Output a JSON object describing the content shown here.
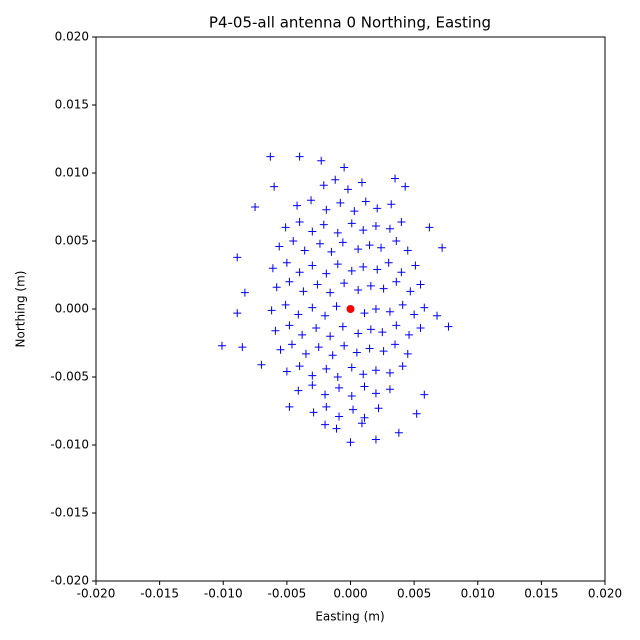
{
  "chart_data": {
    "type": "scatter",
    "title": "P4-05-all antenna 0 Northing, Easting",
    "xlabel": "Easting (m)",
    "ylabel": "Northing (m)",
    "xlim": [
      -0.02,
      0.02
    ],
    "ylim": [
      -0.02,
      0.02
    ],
    "xticks": [
      {
        "value": -0.02,
        "label": "-0.020"
      },
      -0.015,
      {
        "value": -0.01,
        "label": "-0.010"
      },
      -0.005,
      {
        "value": 0,
        "label": "0.000"
      },
      0.005,
      {
        "value": 0.01,
        "label": "0.010"
      },
      0.015,
      {
        "value": 0.02,
        "label": "0.020"
      }
    ],
    "yticks": [
      {
        "value": -0.02,
        "label": "-0.020"
      },
      -0.015,
      {
        "value": -0.01,
        "label": "-0.010"
      },
      -0.005,
      {
        "value": 0,
        "label": "0.000"
      },
      0.005,
      {
        "value": 0.01,
        "label": "0.010"
      },
      0.015,
      {
        "value": 0.02,
        "label": "0.020"
      }
    ],
    "grid": false,
    "series": [
      {
        "color": "#0000ff",
        "marker": "plus",
        "x": [
          -0.0021,
          -0.0012,
          -0.0002,
          0.0009,
          -0.0042,
          -0.0031,
          -0.0019,
          -0.0008,
          0.0003,
          0.0012,
          0.0021,
          0.0032,
          -0.0051,
          -0.004,
          -0.003,
          -0.0021,
          -0.001,
          0.0001,
          0.001,
          0.002,
          0.0031,
          0.004,
          -0.0056,
          -0.0045,
          -0.0036,
          -0.0024,
          -0.0015,
          -0.0006,
          0.0006,
          0.0015,
          0.0024,
          0.0036,
          0.0045,
          -0.0061,
          -0.005,
          -0.004,
          -0.003,
          -0.0019,
          -0.001,
          0.0001,
          0.001,
          0.0021,
          0.003,
          0.004,
          0.0051,
          -0.0058,
          -0.0048,
          -0.0037,
          -0.0026,
          -0.0016,
          -0.0005,
          0.0006,
          0.0016,
          0.0026,
          0.0036,
          0.0047,
          0.0055,
          -0.0062,
          -0.0051,
          -0.0041,
          -0.003,
          -0.002,
          -0.0011,
          0.0011,
          0.002,
          0.0031,
          0.0041,
          0.005,
          0.0058,
          -0.0059,
          -0.0048,
          -0.0038,
          -0.0027,
          -0.0016,
          -0.0006,
          0.0006,
          0.0016,
          0.0025,
          0.0036,
          0.0046,
          0.0055,
          -0.0055,
          -0.0046,
          -0.0035,
          -0.0025,
          -0.0014,
          -0.0005,
          0.0005,
          0.0015,
          0.0026,
          0.0035,
          0.0045,
          -0.005,
          -0.004,
          -0.003,
          -0.0019,
          -0.001,
          0.0001,
          0.001,
          0.002,
          0.0031,
          0.0041,
          -0.0041,
          -0.003,
          -0.002,
          -0.0009,
          0.0001,
          0.0011,
          0.002,
          0.0031,
          -0.0029,
          -0.0019,
          -0.0009,
          0.0002,
          0.0011,
          0.0022,
          -0.0011,
          0.0009,
          -0.0101,
          -0.0089,
          -0.0089,
          -0.0083,
          0.0077,
          0.0068,
          -0.0063,
          -0.004,
          -0.0023,
          -0.0005,
          0.0035,
          0.0043,
          0.0062,
          0.0072,
          0.0,
          0.002,
          0.0038,
          -0.002,
          -0.007,
          0.0058,
          -0.006,
          -0.0075,
          -0.0085,
          0.0052,
          -0.0048
        ],
        "values": [
          0.0091,
          0.0095,
          0.0088,
          0.0093,
          0.0076,
          0.008,
          0.0073,
          0.0078,
          0.0072,
          0.0079,
          0.0074,
          0.0077,
          0.006,
          0.0064,
          0.0057,
          0.0062,
          0.0056,
          0.0063,
          0.0058,
          0.0061,
          0.0059,
          0.0064,
          0.0046,
          0.005,
          0.0043,
          0.0048,
          0.0042,
          0.0049,
          0.0044,
          0.0047,
          0.0045,
          0.005,
          0.0043,
          0.003,
          0.0034,
          0.0027,
          0.0032,
          0.0026,
          0.0033,
          0.0028,
          0.0031,
          0.0029,
          0.0034,
          0.0027,
          0.0032,
          0.0016,
          0.002,
          0.0013,
          0.0018,
          0.0012,
          0.0019,
          0.0014,
          0.0017,
          0.0015,
          0.002,
          0.0013,
          0.0018,
          -0.0001,
          0.0003,
          -0.0004,
          0.0001,
          -0.0005,
          0.0002,
          -0.0003,
          0.0,
          -0.0002,
          0.0003,
          -0.0004,
          0.0001,
          -0.0016,
          -0.0012,
          -0.0019,
          -0.0014,
          -0.002,
          -0.0013,
          -0.0018,
          -0.0015,
          -0.0017,
          -0.0012,
          -0.0019,
          -0.0014,
          -0.003,
          -0.0026,
          -0.0033,
          -0.0028,
          -0.0034,
          -0.0027,
          -0.0032,
          -0.0029,
          -0.0031,
          -0.0026,
          -0.0033,
          -0.0046,
          -0.0042,
          -0.0049,
          -0.0044,
          -0.005,
          -0.0043,
          -0.0048,
          -0.0045,
          -0.0047,
          -0.0042,
          -0.006,
          -0.0056,
          -0.0063,
          -0.0058,
          -0.0064,
          -0.0057,
          -0.0062,
          -0.0059,
          -0.0076,
          -0.0072,
          -0.0079,
          -0.0074,
          -0.008,
          -0.0073,
          -0.0088,
          -0.0084,
          -0.0027,
          0.0038,
          -0.0003,
          0.0012,
          -0.0013,
          -0.0005,
          0.0112,
          0.0112,
          0.0109,
          0.0104,
          0.0096,
          0.009,
          0.006,
          0.0045,
          -0.0098,
          -0.0096,
          -0.0091,
          -0.0085,
          -0.0041,
          -0.0063,
          0.009,
          0.0075,
          -0.0028,
          -0.0077,
          -0.0072
        ]
      },
      {
        "color": "#ff0000",
        "marker": "circle",
        "x": [
          0
        ],
        "values": [
          0
        ]
      }
    ]
  }
}
